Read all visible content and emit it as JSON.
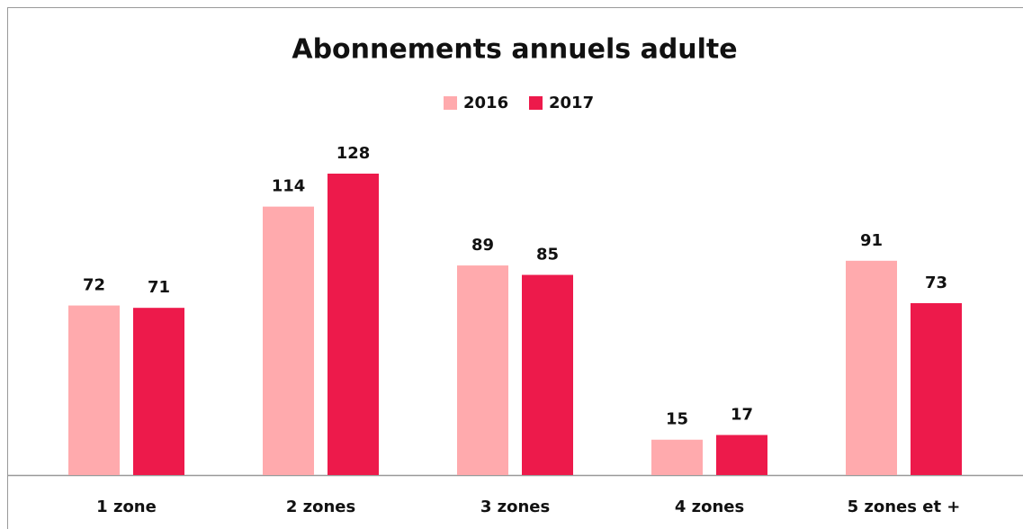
{
  "chart_data": {
    "type": "bar",
    "title": "Abonnements annuels adulte",
    "categories": [
      "1 zone",
      "2 zones",
      "3 zones",
      "4 zones",
      "5 zones et +"
    ],
    "series": [
      {
        "name": "2016",
        "color": "#ffaaad",
        "values": [
          72,
          114,
          89,
          15,
          91
        ]
      },
      {
        "name": "2017",
        "color": "#ed1a4b",
        "values": [
          71,
          128,
          85,
          17,
          73
        ]
      }
    ]
  }
}
